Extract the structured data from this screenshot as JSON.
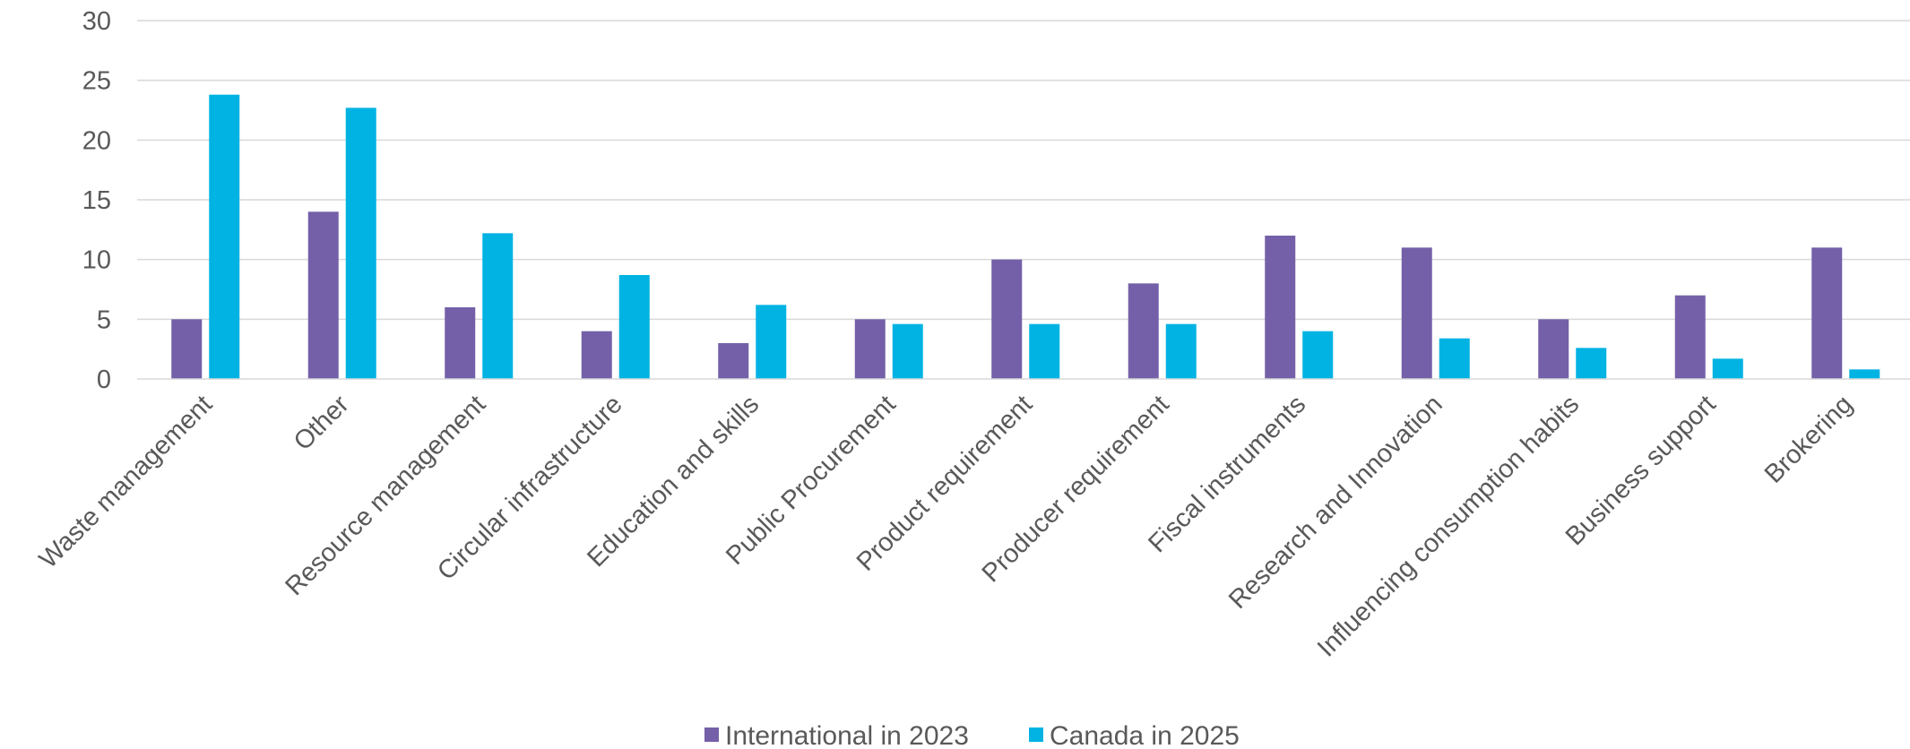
{
  "chart_data": {
    "type": "bar",
    "title": "",
    "xlabel": "",
    "ylabel": "",
    "ylim": [
      0,
      30
    ],
    "yticks": [
      0,
      5,
      10,
      15,
      20,
      25,
      30
    ],
    "grid": true,
    "legend_position": "bottom",
    "categories": [
      "Waste management",
      "Other",
      "Resource management",
      "Circular infrastructure",
      "Education and skills",
      "Public Procurement",
      "Product requirement",
      "Producer requirement",
      "Fiscal instruments",
      "Research and Innovation",
      "Influencing consumption habits",
      "Business support",
      "Brokering"
    ],
    "series": [
      {
        "name": "International in 2023",
        "color": "#7460a8",
        "values": [
          5,
          14,
          6,
          4,
          3,
          5,
          10,
          8,
          12,
          11,
          5,
          7,
          11
        ]
      },
      {
        "name": "Canada in 2025",
        "color": "#00b3e3",
        "values": [
          23.8,
          22.7,
          12.2,
          8.7,
          6.2,
          4.6,
          4.6,
          4.6,
          4.0,
          3.4,
          2.6,
          1.7,
          0.8
        ]
      }
    ]
  }
}
